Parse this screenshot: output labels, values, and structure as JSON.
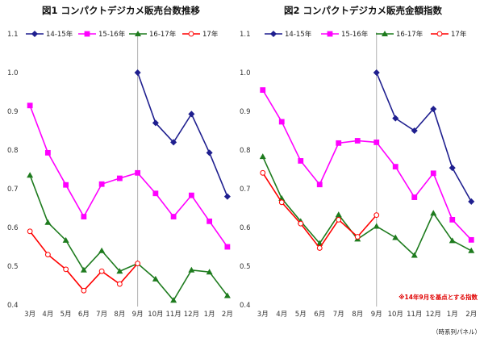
{
  "chart_data": [
    {
      "type": "line",
      "title": "図1 コンパクトデジカメ販売台数推移",
      "categories": [
        "3月",
        "4月",
        "5月",
        "6月",
        "7月",
        "8月",
        "9月",
        "10月",
        "11月",
        "12月",
        "1月",
        "2月"
      ],
      "ylim": [
        0.4,
        1.1
      ],
      "yticks": [
        "0.4",
        "0.5",
        "0.6",
        "0.7",
        "0.8",
        "0.9",
        "1.0",
        "1.1"
      ],
      "grid": false,
      "legend_position": "top",
      "series": [
        {
          "name": "14-15年",
          "color": "#1f1f8f",
          "marker": "diamond",
          "values": [
            null,
            null,
            null,
            null,
            null,
            null,
            1.0,
            0.87,
            0.82,
            0.893,
            0.793,
            0.68
          ]
        },
        {
          "name": "15-16年",
          "color": "#ff00ff",
          "marker": "square",
          "values": [
            0.915,
            0.793,
            0.71,
            0.628,
            0.712,
            0.727,
            0.741,
            0.688,
            0.628,
            0.683,
            0.616,
            0.55
          ]
        },
        {
          "name": "16-17年",
          "color": "#1e7b1e",
          "marker": "triangle",
          "values": [
            0.735,
            0.613,
            0.567,
            0.49,
            0.54,
            0.487,
            0.507,
            0.467,
            0.412,
            0.49,
            0.485,
            0.424
          ]
        },
        {
          "name": "17年",
          "color": "#ff0000",
          "marker": "circle-open",
          "values": [
            0.59,
            0.53,
            0.492,
            0.437,
            0.487,
            0.454,
            0.507,
            null,
            null,
            null,
            null,
            null
          ]
        }
      ]
    },
    {
      "type": "line",
      "title": "図2 コンパクトデジカメ販売金額指数",
      "categories": [
        "3月",
        "4月",
        "5月",
        "6月",
        "7月",
        "8月",
        "9月",
        "10月",
        "11月",
        "12月",
        "1月",
        "2月"
      ],
      "ylim": [
        0.4,
        1.1
      ],
      "yticks": [
        "0.4",
        "0.5",
        "0.6",
        "0.7",
        "0.8",
        "0.9",
        "1.0",
        "1.1"
      ],
      "grid": false,
      "legend_position": "top",
      "annotation": "※14年9月を基点とする指数",
      "series": [
        {
          "name": "14-15年",
          "color": "#1f1f8f",
          "marker": "diamond",
          "values": [
            null,
            null,
            null,
            null,
            null,
            null,
            1.0,
            0.882,
            0.85,
            0.906,
            0.754,
            0.667
          ]
        },
        {
          "name": "15-16年",
          "color": "#ff00ff",
          "marker": "square",
          "values": [
            0.955,
            0.873,
            0.772,
            0.711,
            0.818,
            0.824,
            0.82,
            0.757,
            0.678,
            0.74,
            0.62,
            0.568
          ]
        },
        {
          "name": "16-17年",
          "color": "#1e7b1e",
          "marker": "triangle",
          "values": [
            0.783,
            0.675,
            0.616,
            0.559,
            0.633,
            0.57,
            0.603,
            0.574,
            0.528,
            0.637,
            0.566,
            0.54
          ]
        },
        {
          "name": "17年",
          "color": "#ff0000",
          "marker": "circle-open",
          "values": [
            0.741,
            0.665,
            0.61,
            0.547,
            0.62,
            0.576,
            0.632,
            null,
            null,
            null,
            null,
            null
          ]
        }
      ]
    }
  ],
  "source_note": "（時系列パネル）"
}
